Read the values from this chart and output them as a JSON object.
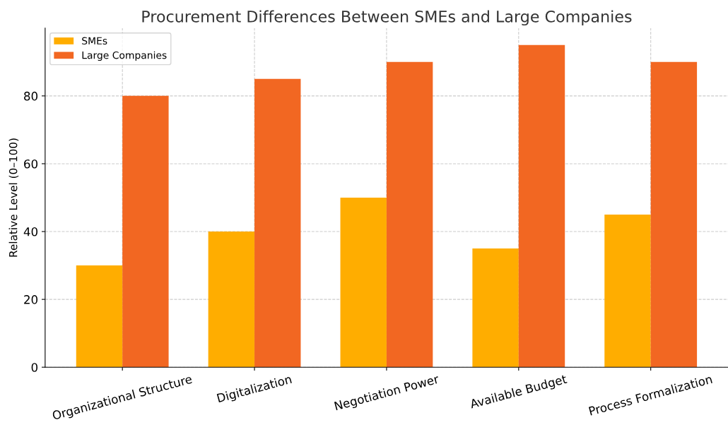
{
  "chart_data": {
    "type": "bar",
    "title": "Procurement Differences Between SMEs and Large Companies",
    "ylabel": "Relative Level (0–100)",
    "categories": [
      "Organizational Structure",
      "Digitalization",
      "Negotiation Power",
      "Available Budget",
      "Process Formalization"
    ],
    "series": [
      {
        "name": "SMEs",
        "color": "#ffad00",
        "values": [
          30,
          40,
          50,
          35,
          45
        ]
      },
      {
        "name": "Large Companies",
        "color": "#f26722",
        "values": [
          80,
          85,
          90,
          95,
          90
        ]
      }
    ],
    "ylim": [
      0,
      100
    ],
    "yticks": [
      0,
      20,
      40,
      60,
      80
    ],
    "grid": true,
    "legend": "top left"
  }
}
